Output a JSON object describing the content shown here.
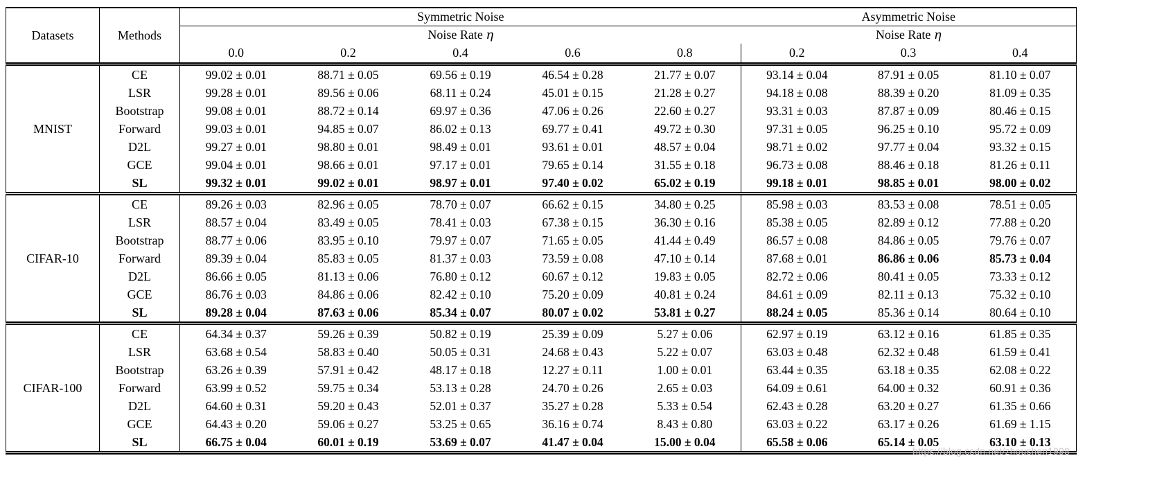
{
  "table": {
    "headers": {
      "datasets": "Datasets",
      "methods": "Methods",
      "symmetric": "Symmetric Noise",
      "asymmetric": "Asymmetric Noise",
      "noise_rate_label": "Noise Rate",
      "noise_rate_symbol": "η",
      "sym_rates": [
        "0.0",
        "0.2",
        "0.4",
        "0.6",
        "0.8"
      ],
      "asym_rates": [
        "0.2",
        "0.3",
        "0.4"
      ]
    },
    "blocks": [
      {
        "dataset": "MNIST",
        "rows": [
          {
            "method": "CE",
            "bold_method": false,
            "values": [
              "99.02 ± 0.01",
              "88.71 ± 0.05",
              "69.56 ± 0.19",
              "46.54 ± 0.28",
              "21.77 ± 0.07",
              "93.14 ± 0.04",
              "87.91 ± 0.05",
              "81.10 ± 0.07"
            ],
            "bold_values": []
          },
          {
            "method": "LSR",
            "bold_method": false,
            "values": [
              "99.28 ± 0.01",
              "89.56 ± 0.06",
              "68.11 ± 0.24",
              "45.01 ± 0.15",
              "21.28 ± 0.27",
              "94.18 ± 0.08",
              "88.39 ± 0.20",
              "81.09 ± 0.35"
            ],
            "bold_values": []
          },
          {
            "method": "Bootstrap",
            "bold_method": false,
            "values": [
              "99.08 ± 0.01",
              "88.72 ± 0.14",
              "69.97 ± 0.36",
              "47.06 ± 0.26",
              "22.60 ± 0.27",
              "93.31 ± 0.03",
              "87.87 ± 0.09",
              "80.46 ± 0.15"
            ],
            "bold_values": []
          },
          {
            "method": "Forward",
            "bold_method": false,
            "values": [
              "99.03 ± 0.01",
              "94.85 ± 0.07",
              "86.02 ± 0.13",
              "69.77 ± 0.41",
              "49.72 ± 0.30",
              "97.31 ± 0.05",
              "96.25 ± 0.10",
              "95.72 ± 0.09"
            ],
            "bold_values": []
          },
          {
            "method": "D2L",
            "bold_method": false,
            "values": [
              "99.27 ± 0.01",
              "98.80 ± 0.01",
              "98.49 ± 0.01",
              "93.61 ± 0.01",
              "48.57 ± 0.04",
              "98.71 ± 0.02",
              "97.77 ± 0.04",
              "93.32 ± 0.15"
            ],
            "bold_values": []
          },
          {
            "method": "GCE",
            "bold_method": false,
            "values": [
              "99.04 ± 0.01",
              "98.66 ± 0.01",
              "97.17 ± 0.01",
              "79.65 ± 0.14",
              "31.55 ± 0.18",
              "96.73 ± 0.08",
              "88.46 ± 0.18",
              "81.26 ± 0.11"
            ],
            "bold_values": []
          },
          {
            "method": "SL",
            "bold_method": true,
            "values": [
              "99.32 ± 0.01",
              "99.02 ± 0.01",
              "98.97 ± 0.01",
              "97.40 ± 0.02",
              "65.02 ± 0.19",
              "99.18 ± 0.01",
              "98.85 ± 0.01",
              "98.00 ± 0.02"
            ],
            "bold_values": [
              0,
              1,
              2,
              3,
              4,
              5,
              6,
              7
            ]
          }
        ]
      },
      {
        "dataset": "CIFAR-10",
        "rows": [
          {
            "method": "CE",
            "bold_method": false,
            "values": [
              "89.26 ± 0.03",
              "82.96 ± 0.05",
              "78.70 ± 0.07",
              "66.62 ± 0.15",
              "34.80 ± 0.25",
              "85.98 ± 0.03",
              "83.53 ± 0.08",
              "78.51 ± 0.05"
            ],
            "bold_values": []
          },
          {
            "method": "LSR",
            "bold_method": false,
            "values": [
              "88.57 ± 0.04",
              "83.49 ± 0.05",
              "78.41 ± 0.03",
              "67.38 ± 0.15",
              "36.30 ± 0.16",
              "85.38 ± 0.05",
              "82.89 ± 0.12",
              "77.88 ± 0.20"
            ],
            "bold_values": []
          },
          {
            "method": "Bootstrap",
            "bold_method": false,
            "values": [
              "88.77 ± 0.06",
              "83.95 ± 0.10",
              "79.97 ± 0.07",
              "71.65 ± 0.05",
              "41.44 ± 0.49",
              "86.57 ± 0.08",
              "84.86 ± 0.05",
              "79.76 ± 0.07"
            ],
            "bold_values": []
          },
          {
            "method": "Forward",
            "bold_method": false,
            "values": [
              "89.39 ± 0.04",
              "85.83 ± 0.05",
              "81.37 ± 0.03",
              "73.59 ± 0.08",
              "47.10 ± 0.14",
              "87.68 ± 0.01",
              "86.86 ± 0.06",
              "85.73 ± 0.04"
            ],
            "bold_values": [
              6,
              7
            ]
          },
          {
            "method": "D2L",
            "bold_method": false,
            "values": [
              "86.66 ± 0.05",
              "81.13 ± 0.06",
              "76.80 ± 0.12",
              "60.67 ± 0.12",
              "19.83 ± 0.05",
              "82.72 ± 0.06",
              "80.41 ± 0.05",
              "73.33 ± 0.12"
            ],
            "bold_values": []
          },
          {
            "method": "GCE",
            "bold_method": false,
            "values": [
              "86.76 ± 0.03",
              "84.86 ± 0.06",
              "82.42 ± 0.10",
              "75.20 ± 0.09",
              "40.81 ± 0.24",
              "84.61 ± 0.09",
              "82.11 ± 0.13",
              "75.32 ± 0.10"
            ],
            "bold_values": []
          },
          {
            "method": "SL",
            "bold_method": true,
            "values": [
              "89.28 ± 0.04",
              "87.63 ± 0.06",
              "85.34 ± 0.07",
              "80.07 ± 0.02",
              "53.81 ± 0.27",
              "88.24 ± 0.05",
              "85.36 ± 0.14",
              "80.64 ± 0.10"
            ],
            "bold_values": [
              0,
              1,
              2,
              3,
              4,
              5
            ]
          }
        ]
      },
      {
        "dataset": "CIFAR-100",
        "rows": [
          {
            "method": "CE",
            "bold_method": false,
            "values": [
              "64.34 ± 0.37",
              "59.26 ± 0.39",
              "50.82 ± 0.19",
              "25.39 ± 0.09",
              "5.27 ± 0.06",
              "62.97 ± 0.19",
              "63.12 ± 0.16",
              "61.85 ± 0.35"
            ],
            "bold_values": []
          },
          {
            "method": "LSR",
            "bold_method": false,
            "values": [
              "63.68 ± 0.54",
              "58.83 ± 0.40",
              "50.05 ± 0.31",
              "24.68 ± 0.43",
              "5.22 ± 0.07",
              "63.03 ± 0.48",
              "62.32 ± 0.48",
              "61.59 ± 0.41"
            ],
            "bold_values": []
          },
          {
            "method": "Bootstrap",
            "bold_method": false,
            "values": [
              "63.26 ± 0.39",
              "57.91 ± 0.42",
              "48.17 ± 0.18",
              "12.27 ± 0.11",
              "1.00 ± 0.01",
              "63.44 ± 0.35",
              "63.18 ± 0.35",
              "62.08 ± 0.22"
            ],
            "bold_values": []
          },
          {
            "method": "Forward",
            "bold_method": false,
            "values": [
              "63.99 ± 0.52",
              "59.75 ± 0.34",
              "53.13 ± 0.28",
              "24.70 ± 0.26",
              "2.65 ± 0.03",
              "64.09 ± 0.61",
              "64.00 ± 0.32",
              "60.91 ± 0.36"
            ],
            "bold_values": []
          },
          {
            "method": "D2L",
            "bold_method": false,
            "values": [
              "64.60 ± 0.31",
              "59.20 ± 0.43",
              "52.01 ± 0.37",
              "35.27 ± 0.28",
              "5.33 ± 0.54",
              "62.43 ± 0.28",
              "63.20 ± 0.27",
              "61.35 ± 0.66"
            ],
            "bold_values": []
          },
          {
            "method": "GCE",
            "bold_method": false,
            "values": [
              "64.43 ± 0.20",
              "59.06 ± 0.27",
              "53.25 ± 0.65",
              "36.16 ± 0.74",
              "8.43 ± 0.80",
              "63.03 ± 0.22",
              "63.17 ± 0.26",
              "61.69 ± 1.15"
            ],
            "bold_values": []
          },
          {
            "method": "SL",
            "bold_method": true,
            "values": [
              "66.75 ± 0.04",
              "60.01 ± 0.19",
              "53.69 ± 0.07",
              "41.47 ± 0.04",
              "15.00 ± 0.04",
              "65.58 ± 0.06",
              "65.14 ± 0.05",
              "63.10 ± 0.13"
            ],
            "bold_values": [
              0,
              1,
              2,
              3,
              4,
              5,
              6,
              7
            ]
          }
        ]
      }
    ]
  },
  "watermark": "https://blog.csdn.net/zhoushen1998"
}
